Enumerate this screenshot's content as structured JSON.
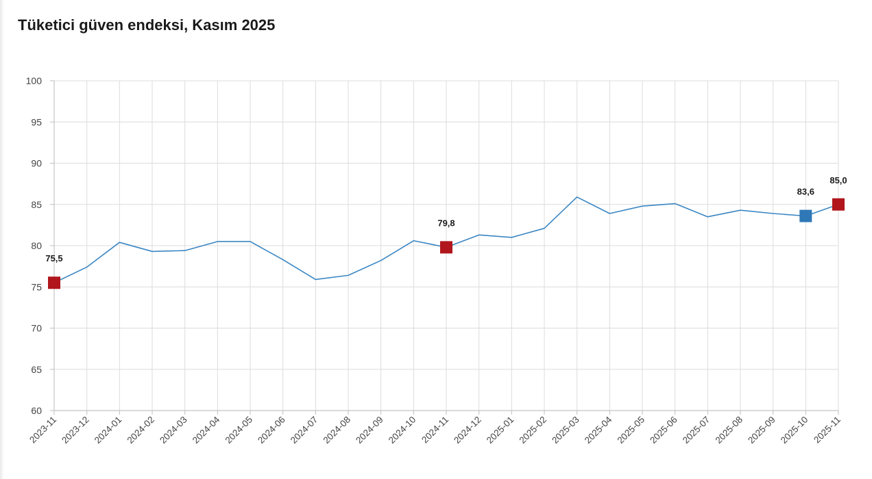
{
  "title": "Tüketici güven endeksi, Kasım 2025",
  "chart_data": {
    "type": "line",
    "title": "Tüketici güven endeksi, Kasım 2025",
    "xlabel": "",
    "ylabel": "",
    "ylim": [
      60,
      100
    ],
    "yticks": [
      60,
      65,
      70,
      75,
      80,
      85,
      90,
      95,
      100
    ],
    "grid": true,
    "categories": [
      "2023-11",
      "2023-12",
      "2024-01",
      "2024-02",
      "2024-03",
      "2024-04",
      "2024-05",
      "2024-06",
      "2024-07",
      "2024-08",
      "2024-09",
      "2024-10",
      "2024-11",
      "2024-12",
      "2025-01",
      "2025-02",
      "2025-03",
      "2025-04",
      "2025-05",
      "2025-06",
      "2025-07",
      "2025-08",
      "2025-09",
      "2025-10",
      "2025-11"
    ],
    "series": [
      {
        "values": [
          75.5,
          77.4,
          80.4,
          79.3,
          79.4,
          80.5,
          80.5,
          78.3,
          75.9,
          76.4,
          78.2,
          80.6,
          79.8,
          81.3,
          81.0,
          82.1,
          85.9,
          83.9,
          84.8,
          85.1,
          83.5,
          84.3,
          83.9,
          83.6,
          85.0
        ],
        "color": "#3a86c3"
      }
    ],
    "highlights": [
      {
        "category": "2023-11",
        "label": "75,5",
        "value": 75.5,
        "color": "#b0161c"
      },
      {
        "category": "2024-11",
        "label": "79,8",
        "value": 79.8,
        "color": "#b0161c"
      },
      {
        "category": "2025-10",
        "label": "83,6",
        "value": 83.6,
        "color": "#2f78b8"
      },
      {
        "category": "2025-11",
        "label": "85,0",
        "value": 85.0,
        "color": "#b0161c"
      }
    ]
  }
}
